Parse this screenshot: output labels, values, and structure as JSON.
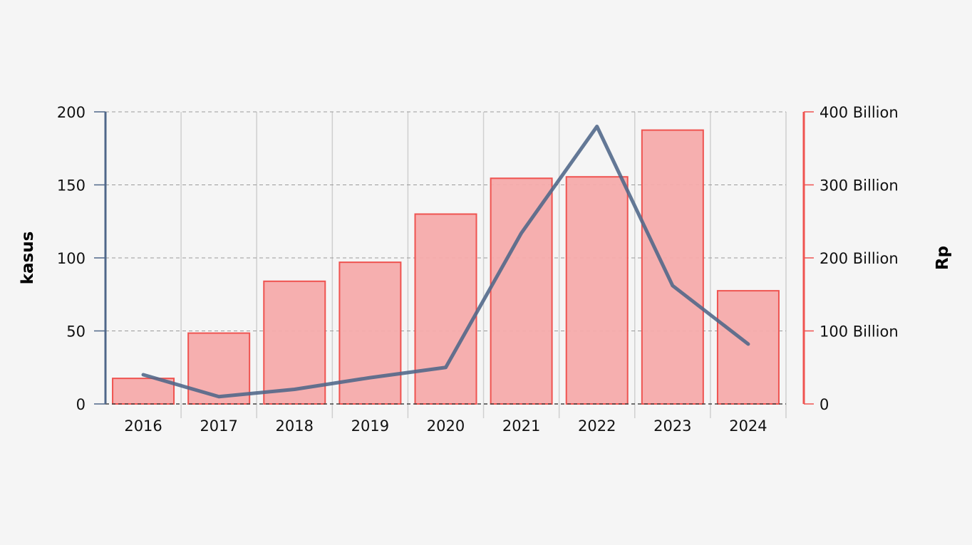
{
  "chart_data": {
    "type": "bar",
    "categories": [
      "2016",
      "2017",
      "2018",
      "2019",
      "2020",
      "2021",
      "2022",
      "2023",
      "2024"
    ],
    "series": [
      {
        "type": "bar",
        "axis": "right",
        "values": [
          35000000000,
          97000000000,
          168000000000,
          194000000000,
          260000000000,
          309000000000,
          311000000000,
          375000000000,
          155000000000
        ],
        "fill_color": "#f5abab",
        "stroke_color": "#ef5350"
      },
      {
        "type": "line",
        "axis": "left",
        "values": [
          20,
          5,
          10,
          18,
          25,
          117,
          190,
          81,
          41
        ],
        "color": "#4f6789"
      }
    ],
    "y_left": {
      "label": "kasus",
      "range": [
        0,
        200
      ],
      "ticks": [
        "0",
        "50",
        "100",
        "150",
        "200"
      ],
      "tick_values": [
        0,
        50,
        100,
        150,
        200
      ],
      "color": "#4f6789"
    },
    "y_right": {
      "label": "Rp",
      "range": [
        0,
        400000000000
      ],
      "ticks": [
        "0",
        "100 Billion",
        "200 Billion",
        "300 Billion",
        "400 Billion"
      ],
      "tick_values": [
        0,
        100000000000,
        200000000000,
        300000000000,
        400000000000
      ],
      "color": "#ef5350"
    },
    "grid": true,
    "legend": "none"
  }
}
